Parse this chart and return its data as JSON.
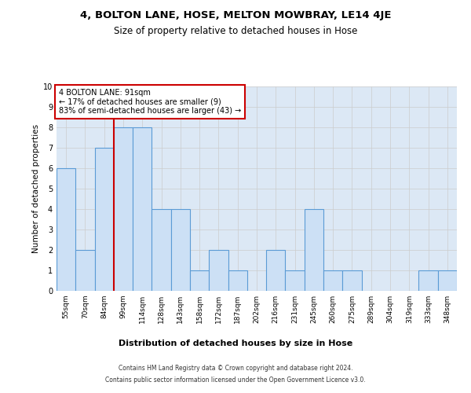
{
  "title": "4, BOLTON LANE, HOSE, MELTON MOWBRAY, LE14 4JE",
  "subtitle": "Size of property relative to detached houses in Hose",
  "xlabel": "Distribution of detached houses by size in Hose",
  "ylabel": "Number of detached properties",
  "categories": [
    "55sqm",
    "70sqm",
    "84sqm",
    "99sqm",
    "114sqm",
    "128sqm",
    "143sqm",
    "158sqm",
    "172sqm",
    "187sqm",
    "202sqm",
    "216sqm",
    "231sqm",
    "245sqm",
    "260sqm",
    "275sqm",
    "289sqm",
    "304sqm",
    "319sqm",
    "333sqm",
    "348sqm"
  ],
  "values": [
    6,
    2,
    7,
    8,
    8,
    4,
    4,
    1,
    2,
    1,
    0,
    2,
    1,
    4,
    1,
    1,
    0,
    0,
    0,
    1,
    1
  ],
  "bar_color": "#cce0f5",
  "bar_edge_color": "#5b9bd5",
  "annotation_text": "4 BOLTON LANE: 91sqm\n← 17% of detached houses are smaller (9)\n83% of semi-detached houses are larger (43) →",
  "annotation_box_color": "#ffffff",
  "annotation_box_edge_color": "#cc0000",
  "vline_color": "#cc0000",
  "vline_x_index": 2.5,
  "ylim": [
    0,
    10
  ],
  "yticks": [
    0,
    1,
    2,
    3,
    4,
    5,
    6,
    7,
    8,
    9,
    10
  ],
  "grid_color": "#cccccc",
  "bg_color": "#dce8f5",
  "footer_line1": "Contains HM Land Registry data © Crown copyright and database right 2024.",
  "footer_line2": "Contains public sector information licensed under the Open Government Licence v3.0.",
  "title_fontsize": 9.5,
  "subtitle_fontsize": 8.5,
  "xlabel_fontsize": 8,
  "ylabel_fontsize": 7.5,
  "tick_fontsize": 6.5,
  "annotation_fontsize": 7,
  "footer_fontsize": 5.5
}
